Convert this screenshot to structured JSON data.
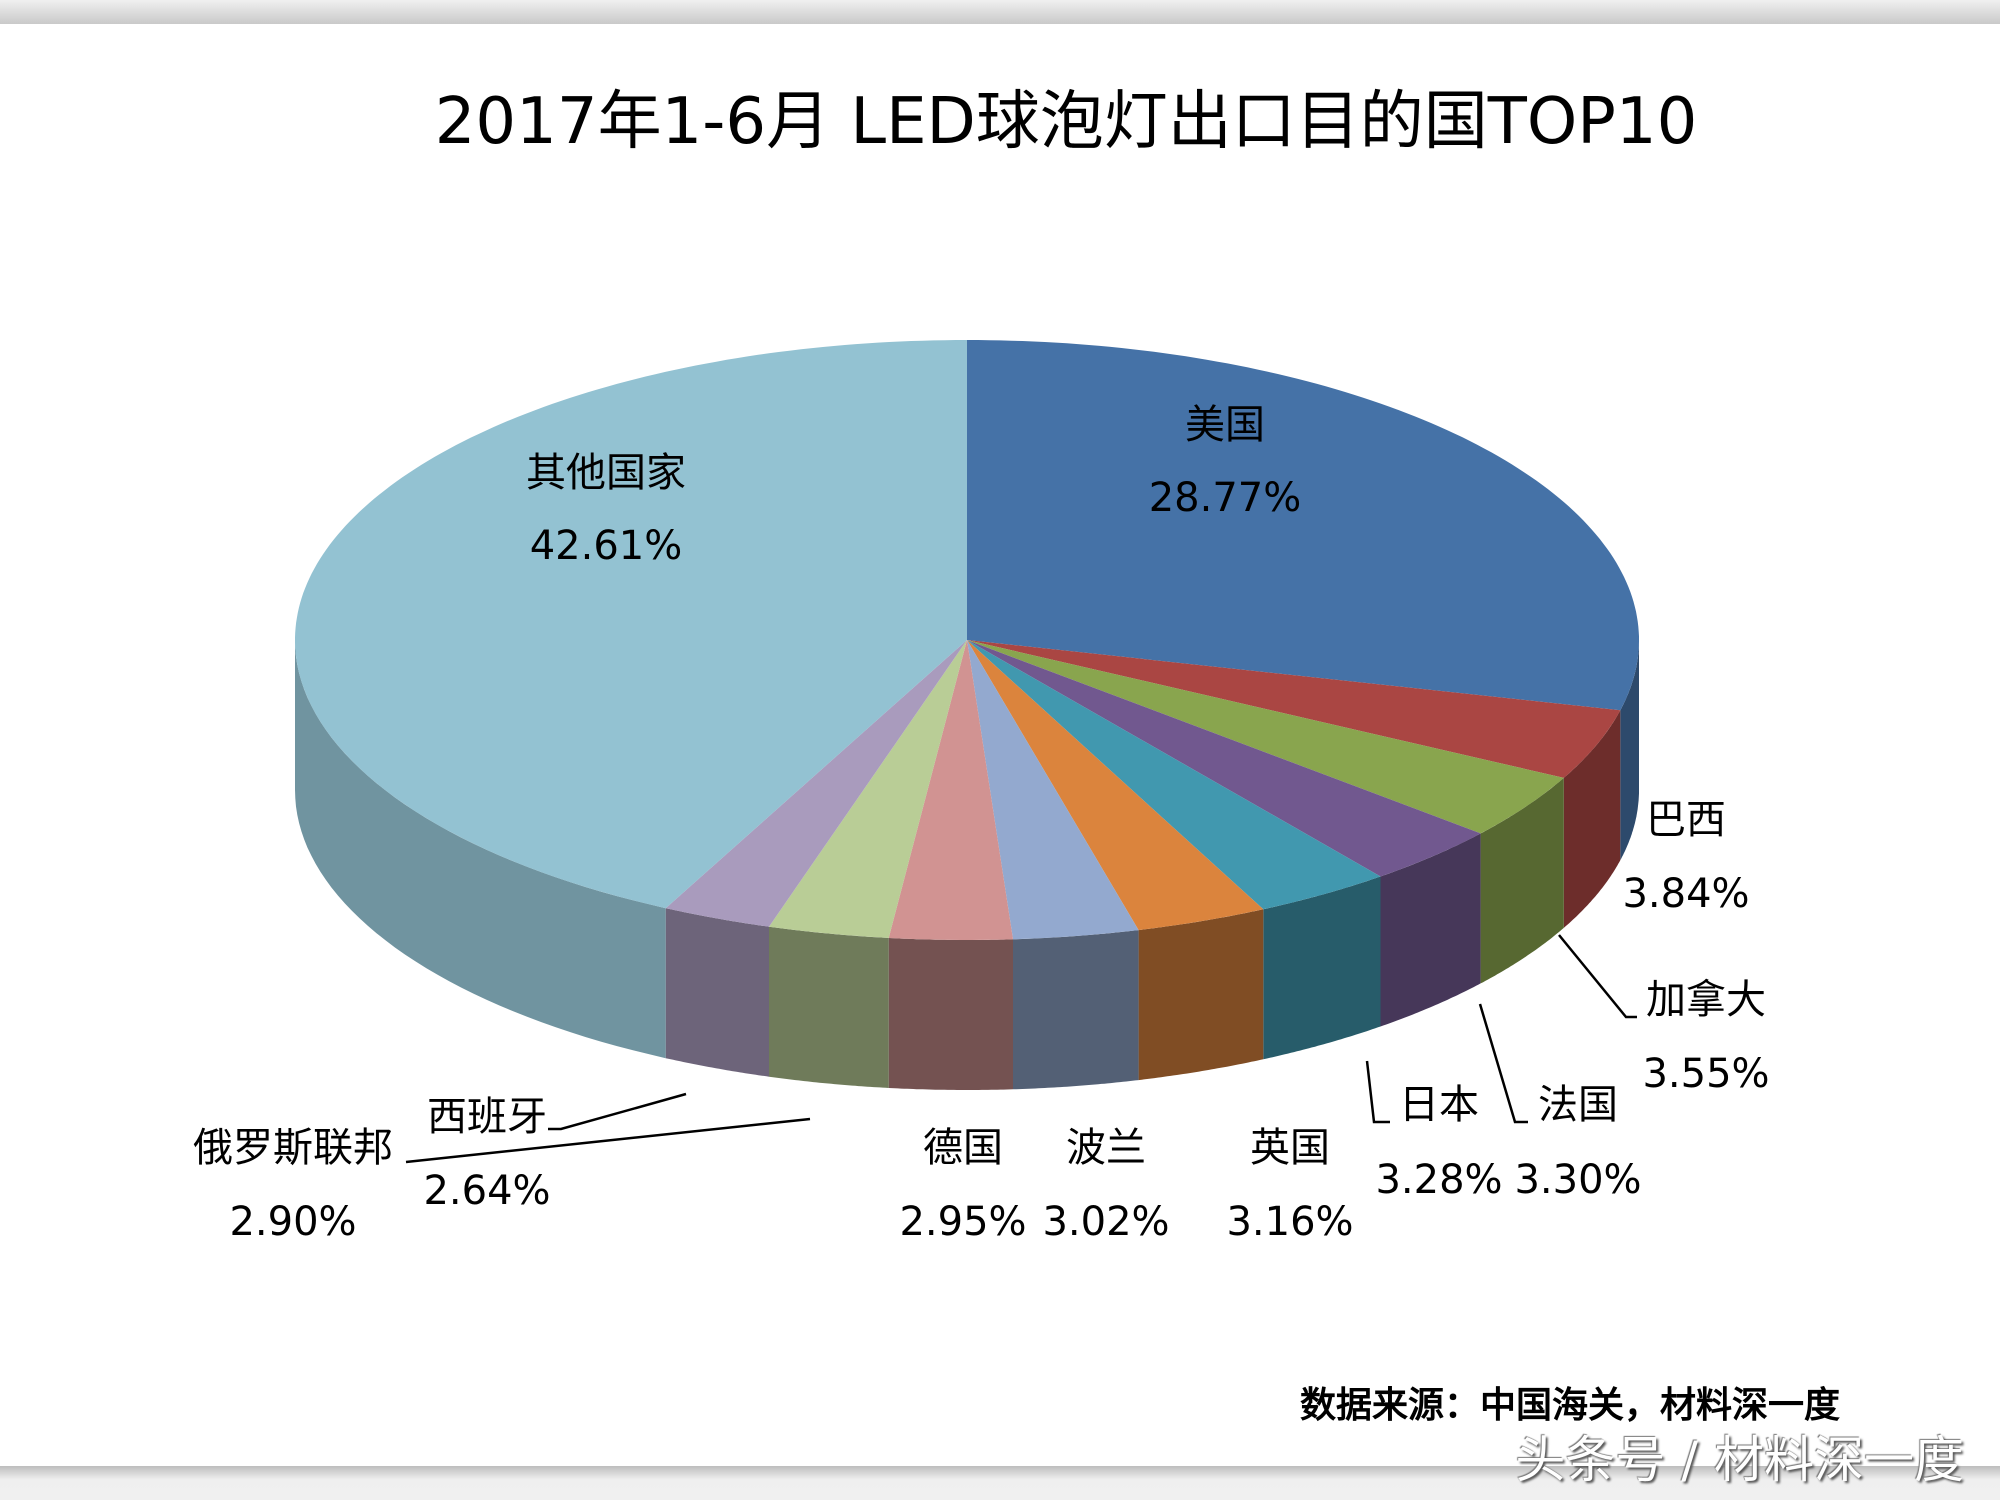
{
  "chart_data": {
    "type": "pie",
    "title": "2017年1-6月 LED球泡灯出口目的国TOP10",
    "categories": [
      "美国",
      "巴西",
      "加拿大",
      "法国",
      "日本",
      "英国",
      "波兰",
      "德国",
      "俄罗斯联邦",
      "西班牙",
      "其他国家"
    ],
    "values": [
      28.77,
      3.84,
      3.55,
      3.3,
      3.28,
      3.16,
      3.02,
      2.95,
      2.9,
      2.64,
      42.61
    ],
    "value_labels": [
      "28.77%",
      "3.84%",
      "3.55%",
      "3.30%",
      "3.28%",
      "3.16%",
      "3.02%",
      "2.95%",
      "2.90%",
      "2.64%",
      "42.61%"
    ],
    "colors": [
      "#4572A7",
      "#AA4643",
      "#89A54E",
      "#71588F",
      "#4198AF",
      "#DB843D",
      "#93A9CF",
      "#D19392",
      "#B9CD96",
      "#A99BBD",
      "#93C2D2"
    ],
    "style": "3d-pie",
    "legend": "none"
  },
  "footer": {
    "source": "数据来源：中国海关，材料深一度",
    "watermark": "头条号 / 材料深一度"
  }
}
